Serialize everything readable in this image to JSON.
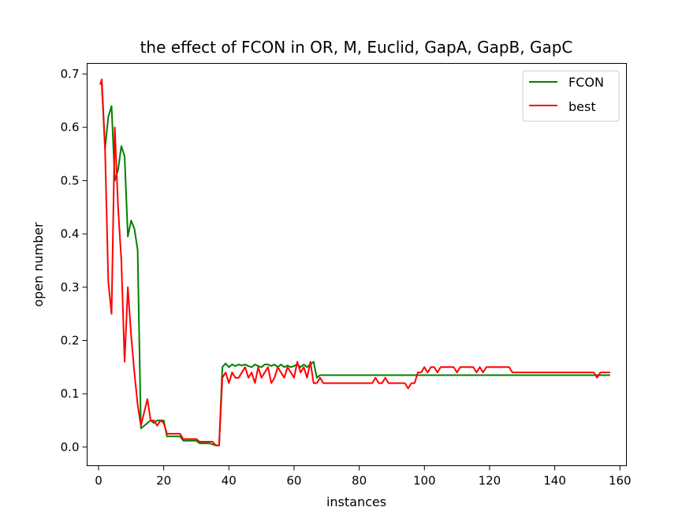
{
  "chart_data": {
    "type": "line",
    "title": "the effect of FCON in OR, M, Euclid, GapA, GapB, GapC",
    "xlabel": "instances",
    "ylabel": "open number",
    "xlim": [
      -3.5,
      162
    ],
    "ylim": [
      -0.035,
      0.72
    ],
    "xticks": [
      0,
      20,
      40,
      60,
      80,
      100,
      120,
      140,
      160
    ],
    "yticks": [
      0.0,
      0.1,
      0.2,
      0.3,
      0.4,
      0.5,
      0.6,
      0.7
    ],
    "ytick_labels": [
      "0.0",
      "0.1",
      "0.2",
      "0.3",
      "0.4",
      "0.5",
      "0.6",
      "0.7"
    ],
    "grid": false,
    "legend_position": "top-right",
    "series": [
      {
        "name": "FCON",
        "color": "#008000",
        "points": [
          [
            1,
            0.68
          ],
          [
            2,
            0.56
          ],
          [
            3,
            0.62
          ],
          [
            4,
            0.64
          ],
          [
            5,
            0.5
          ],
          [
            6,
            0.52
          ],
          [
            7,
            0.565
          ],
          [
            8,
            0.545
          ],
          [
            9,
            0.395
          ],
          [
            10,
            0.425
          ],
          [
            11,
            0.41
          ],
          [
            12,
            0.37
          ],
          [
            13,
            0.035
          ],
          [
            14,
            0.04
          ],
          [
            15,
            0.045
          ],
          [
            16,
            0.05
          ],
          [
            17,
            0.045
          ],
          [
            18,
            0.05
          ],
          [
            19,
            0.05
          ],
          [
            20,
            0.05
          ],
          [
            21,
            0.02
          ],
          [
            22,
            0.02
          ],
          [
            23,
            0.02
          ],
          [
            24,
            0.02
          ],
          [
            25,
            0.02
          ],
          [
            26,
            0.012
          ],
          [
            27,
            0.012
          ],
          [
            28,
            0.012
          ],
          [
            29,
            0.012
          ],
          [
            30,
            0.012
          ],
          [
            31,
            0.007
          ],
          [
            32,
            0.007
          ],
          [
            33,
            0.007
          ],
          [
            34,
            0.007
          ],
          [
            35,
            0.005
          ],
          [
            36,
            0.003
          ],
          [
            37,
            0.003
          ],
          [
            38,
            0.15
          ],
          [
            39,
            0.157
          ],
          [
            40,
            0.15
          ],
          [
            41,
            0.155
          ],
          [
            42,
            0.152
          ],
          [
            43,
            0.155
          ],
          [
            44,
            0.153
          ],
          [
            45,
            0.155
          ],
          [
            46,
            0.152
          ],
          [
            47,
            0.15
          ],
          [
            48,
            0.155
          ],
          [
            49,
            0.152
          ],
          [
            50,
            0.15
          ],
          [
            51,
            0.155
          ],
          [
            52,
            0.155
          ],
          [
            53,
            0.152
          ],
          [
            54,
            0.155
          ],
          [
            55,
            0.15
          ],
          [
            56,
            0.155
          ],
          [
            57,
            0.15
          ],
          [
            58,
            0.153
          ],
          [
            59,
            0.15
          ],
          [
            60,
            0.152
          ],
          [
            61,
            0.155
          ],
          [
            62,
            0.15
          ],
          [
            63,
            0.155
          ],
          [
            64,
            0.15
          ],
          [
            65,
            0.155
          ],
          [
            66,
            0.16
          ],
          [
            67,
            0.13
          ],
          [
            68,
            0.135
          ],
          [
            80,
            0.135
          ],
          [
            100,
            0.135
          ],
          [
            120,
            0.135
          ],
          [
            140,
            0.135
          ],
          [
            152,
            0.135
          ],
          [
            153,
            0.135
          ],
          [
            157,
            0.135
          ]
        ]
      },
      {
        "name": "best",
        "color": "#ff0000",
        "points": [
          [
            0.5,
            0.68
          ],
          [
            1,
            0.69
          ],
          [
            2,
            0.56
          ],
          [
            3,
            0.31
          ],
          [
            4,
            0.25
          ],
          [
            5,
            0.6
          ],
          [
            6,
            0.45
          ],
          [
            7,
            0.35
          ],
          [
            8,
            0.16
          ],
          [
            9,
            0.3
          ],
          [
            10,
            0.21
          ],
          [
            11,
            0.14
          ],
          [
            12,
            0.08
          ],
          [
            13,
            0.04
          ],
          [
            14,
            0.065
          ],
          [
            15,
            0.09
          ],
          [
            16,
            0.05
          ],
          [
            17,
            0.05
          ],
          [
            18,
            0.04
          ],
          [
            19,
            0.05
          ],
          [
            20,
            0.045
          ],
          [
            21,
            0.025
          ],
          [
            22,
            0.025
          ],
          [
            23,
            0.025
          ],
          [
            24,
            0.025
          ],
          [
            25,
            0.025
          ],
          [
            26,
            0.015
          ],
          [
            27,
            0.015
          ],
          [
            28,
            0.015
          ],
          [
            29,
            0.015
          ],
          [
            30,
            0.015
          ],
          [
            31,
            0.01
          ],
          [
            32,
            0.01
          ],
          [
            33,
            0.01
          ],
          [
            34,
            0.01
          ],
          [
            35,
            0.01
          ],
          [
            36,
            0.003
          ],
          [
            37,
            0.003
          ],
          [
            38,
            0.13
          ],
          [
            39,
            0.14
          ],
          [
            40,
            0.12
          ],
          [
            41,
            0.14
          ],
          [
            42,
            0.13
          ],
          [
            43,
            0.13
          ],
          [
            44,
            0.14
          ],
          [
            45,
            0.15
          ],
          [
            46,
            0.13
          ],
          [
            47,
            0.14
          ],
          [
            48,
            0.12
          ],
          [
            49,
            0.15
          ],
          [
            50,
            0.13
          ],
          [
            51,
            0.14
          ],
          [
            52,
            0.15
          ],
          [
            53,
            0.12
          ],
          [
            54,
            0.13
          ],
          [
            55,
            0.15
          ],
          [
            56,
            0.14
          ],
          [
            57,
            0.13
          ],
          [
            58,
            0.15
          ],
          [
            59,
            0.14
          ],
          [
            60,
            0.13
          ],
          [
            61,
            0.16
          ],
          [
            62,
            0.14
          ],
          [
            63,
            0.15
          ],
          [
            64,
            0.13
          ],
          [
            65,
            0.16
          ],
          [
            66,
            0.12
          ],
          [
            67,
            0.12
          ],
          [
            68,
            0.13
          ],
          [
            69,
            0.12
          ],
          [
            84,
            0.12
          ],
          [
            85,
            0.13
          ],
          [
            86,
            0.12
          ],
          [
            87,
            0.12
          ],
          [
            88,
            0.13
          ],
          [
            89,
            0.12
          ],
          [
            94,
            0.12
          ],
          [
            95,
            0.11
          ],
          [
            96,
            0.12
          ],
          [
            97,
            0.12
          ],
          [
            98,
            0.14
          ],
          [
            99,
            0.14
          ],
          [
            100,
            0.15
          ],
          [
            101,
            0.14
          ],
          [
            102,
            0.15
          ],
          [
            103,
            0.15
          ],
          [
            104,
            0.14
          ],
          [
            105,
            0.15
          ],
          [
            109,
            0.15
          ],
          [
            110,
            0.14
          ],
          [
            111,
            0.15
          ],
          [
            115,
            0.15
          ],
          [
            116,
            0.14
          ],
          [
            117,
            0.15
          ],
          [
            118,
            0.14
          ],
          [
            119,
            0.15
          ],
          [
            126,
            0.15
          ],
          [
            127,
            0.14
          ],
          [
            152,
            0.14
          ],
          [
            153,
            0.13
          ],
          [
            154,
            0.14
          ],
          [
            157,
            0.14
          ]
        ]
      }
    ]
  }
}
